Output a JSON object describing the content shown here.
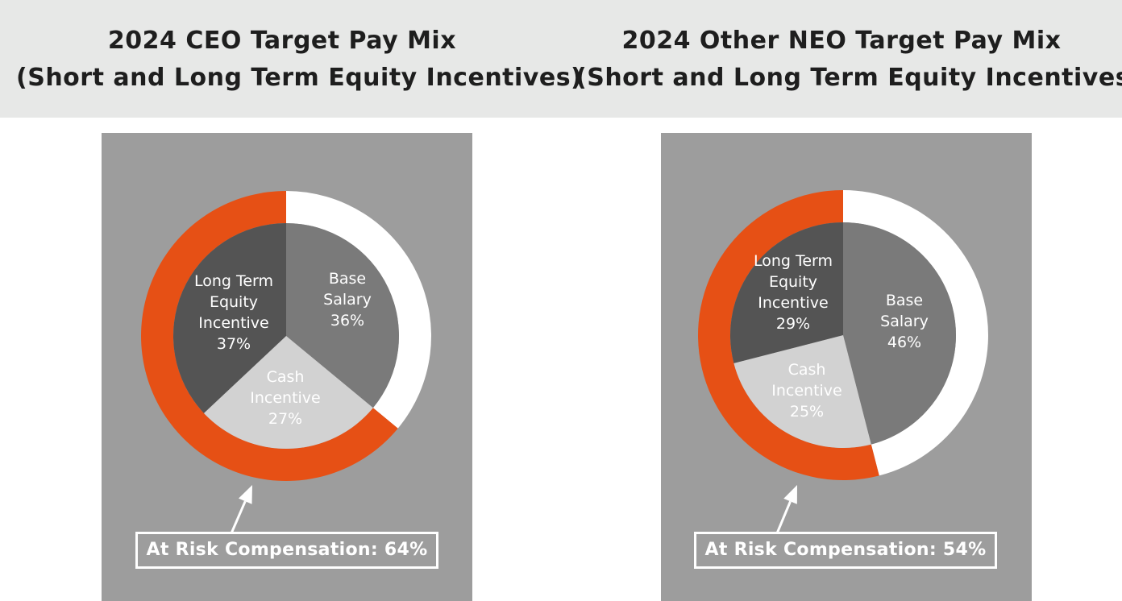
{
  "colors": {
    "header_bg": "#e7e8e7",
    "panel_bg": "#9d9d9d",
    "ring_risk": "#e65015",
    "ring_base": "#ffffff",
    "base_salary": "#7a7a7a",
    "cash_incentive": "#d2d2d2",
    "long_term_equity": "#545454"
  },
  "chart_data": [
    {
      "type": "pie",
      "title_lines": [
        "2024 CEO Target Pay Mix",
        "(Short and Long Term Equity Incentives)"
      ],
      "slices": [
        {
          "key": "base",
          "label_lines": [
            "Base",
            "Salary",
            "36%"
          ],
          "value": 36
        },
        {
          "key": "cash",
          "label_lines": [
            "Cash",
            "Incentive",
            "27%"
          ],
          "value": 27
        },
        {
          "key": "lte",
          "label_lines": [
            "Long Term",
            "Equity",
            "Incentive",
            "37%"
          ],
          "value": 37
        }
      ],
      "ring": {
        "at_risk_value": 64,
        "base_value": 36
      },
      "callout": "At Risk Compensation: 64%"
    },
    {
      "type": "pie",
      "title_lines": [
        "2024 Other NEO Target Pay Mix",
        "(Short and Long Term Equity Incentives)"
      ],
      "slices": [
        {
          "key": "base",
          "label_lines": [
            "Base",
            "Salary",
            "46%"
          ],
          "value": 46
        },
        {
          "key": "cash",
          "label_lines": [
            "Cash",
            "Incentive",
            "25%"
          ],
          "value": 25
        },
        {
          "key": "lte",
          "label_lines": [
            "Long Term",
            "Equity",
            "Incentive",
            "29%"
          ],
          "value": 29
        }
      ],
      "ring": {
        "at_risk_value": 54,
        "base_value": 46
      },
      "callout": "At Risk Compensation: 54%"
    }
  ]
}
